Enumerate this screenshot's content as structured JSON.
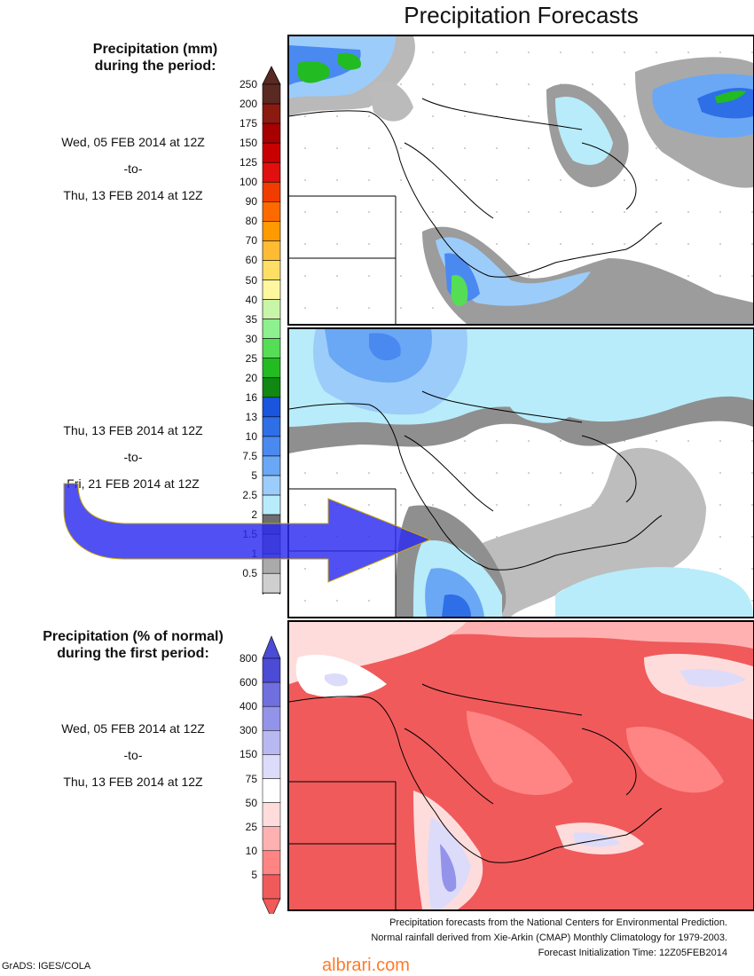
{
  "title": "Precipitation Forecasts",
  "legend_mm": {
    "heading_line1": "Precipitation (mm)",
    "heading_line2": "during the period:",
    "ticks": [
      "250",
      "200",
      "175",
      "150",
      "125",
      "100",
      "90",
      "80",
      "70",
      "60",
      "50",
      "40",
      "35",
      "30",
      "25",
      "20",
      "16",
      "13",
      "10",
      "7.5",
      "5",
      "2.5",
      "2",
      "1.5",
      "1",
      "0.5"
    ],
    "colors": [
      "#5a2a22",
      "#8b1a10",
      "#a80000",
      "#c80000",
      "#e01010",
      "#f03c00",
      "#ff6a00",
      "#ff9a00",
      "#ffbb33",
      "#ffde66",
      "#fff7a0",
      "#c8f5a8",
      "#8ff08f",
      "#55dd55",
      "#22bb22",
      "#118811",
      "#1a55dd",
      "#2e6fe8",
      "#4a8af0",
      "#6aa8f5",
      "#9ccdfa",
      "#b9ecfb",
      "#6e6e6e",
      "#8c8c8c",
      "#aaaaaa",
      "#cfcfcf"
    ]
  },
  "period1": {
    "start": "Wed, 05 FEB 2014 at 12Z",
    "sep": "-to-",
    "end": "Thu, 13 FEB 2014 at 12Z"
  },
  "period2": {
    "start": "Thu, 13 FEB 2014 at 12Z",
    "sep": "-to-",
    "end": "Fri, 21 FEB 2014 at 12Z"
  },
  "legend_pct": {
    "heading_line1": "Precipitation (% of normal)",
    "heading_line2": "during the first period:",
    "ticks": [
      "800",
      "600",
      "400",
      "300",
      "150",
      "75",
      "50",
      "25",
      "10",
      "5"
    ],
    "colors": [
      "#4b4bd6",
      "#6f6fe0",
      "#9393ea",
      "#b8b8f2",
      "#dcdcfa",
      "#ffffff",
      "#ffdcdc",
      "#ffb0b0",
      "#ff8484",
      "#f05a5a"
    ]
  },
  "period3": {
    "start": "Wed, 05 FEB 2014 at 12Z",
    "sep": "-to-",
    "end": "Thu, 13 FEB 2014 at 12Z"
  },
  "credits": {
    "line1": "Precipitation forecasts from the National Centers for Environmental Prediction.",
    "line2": "Normal rainfall derived from Xie-Arkin (CMAP) Monthly Climatology for 1979-2003.",
    "line3": "Forecast Initialization Time: 12Z05FEB2014"
  },
  "grads_label": "GrADS: IGES/COLA",
  "watermark": "albrari.com",
  "arrow_color": "#2a2af0"
}
